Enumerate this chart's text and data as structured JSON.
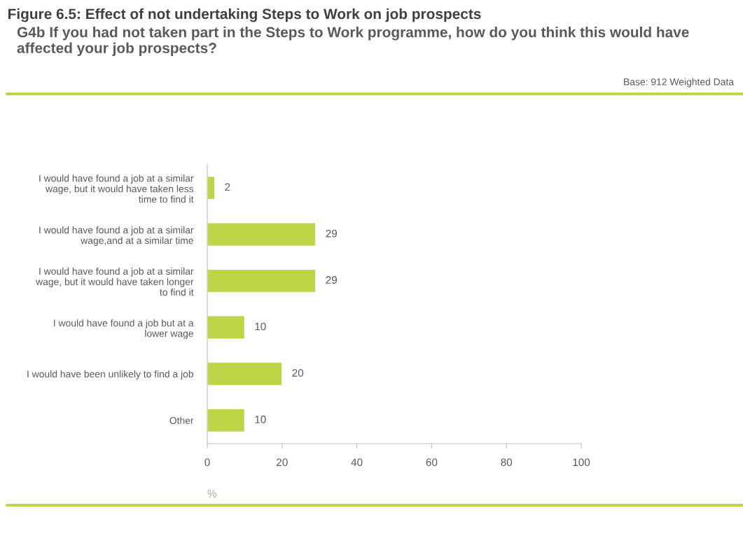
{
  "chart_data": {
    "type": "bar",
    "orientation": "horizontal",
    "title": "Figure 6.5: Effect of not undertaking Steps to Work on job prospects",
    "subtitle": "G4b If you had not taken part in the Steps to Work programme, how do you think this would have affected your job prospects?",
    "annotations": [
      "Base: 912 Weighted Data"
    ],
    "categories": [
      "I would have found a job at a similar\nwage, but it would have taken less\ntime to find it",
      "I would have found a job at a similar\nwage,and at a similar time",
      "I would have found a job at a similar\nwage, but it would have taken longer\nto find it",
      "I would have found a job but at a\nlower wage",
      "I would have been unlikely to find a job",
      "Other"
    ],
    "values": [
      2,
      29,
      29,
      10,
      20,
      10
    ],
    "color": "#bdd647",
    "data_labels": true,
    "xlabel": "%",
    "xlim": [
      0,
      100
    ],
    "xticks": [
      0,
      20,
      40,
      60,
      80,
      100
    ],
    "grid": false,
    "legend": false
  }
}
